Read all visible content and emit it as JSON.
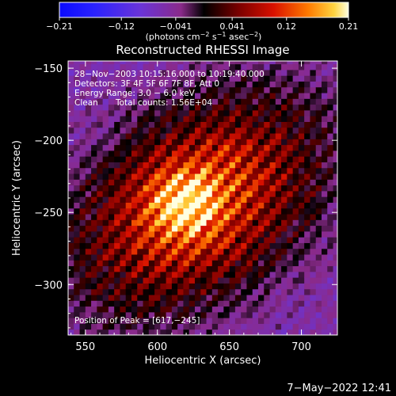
{
  "chart_data": {
    "type": "heatmap",
    "title": "Reconstructed RHESSI Image",
    "xlabel": "Heliocentric X (arcsec)",
    "ylabel": "Heliocentric Y (arcsec)",
    "xlim": [
      538,
      725
    ],
    "ylim": [
      -335,
      -145
    ],
    "x_ticks": [
      550,
      600,
      650,
      700
    ],
    "y_ticks": [
      -150,
      -200,
      -250,
      -300
    ],
    "x_tick_labels": [
      "550",
      "600",
      "650",
      "700"
    ],
    "y_tick_labels": [
      "−150",
      "−200",
      "−250",
      "−300"
    ],
    "colorbar": {
      "min": -0.21,
      "max": 0.21,
      "tick_values": [
        -0.21,
        -0.12,
        -0.041,
        0.041,
        0.12,
        0.21
      ],
      "tick_labels": [
        "−0.21",
        "−0.12",
        "−0.041",
        "0.041",
        "0.12",
        "0.21"
      ],
      "units_label": "(photons cm",
      "units_exp1": "−2",
      "units_mid1": " s",
      "units_exp2": "−1",
      "units_mid2": " asec",
      "units_exp3": "−2",
      "units_end": ")"
    },
    "annotations": {
      "time": "28−Nov−2003 10:15:16.000 to 10:19:40.000",
      "detectors": "Detectors: 3F 4F 5F 6F 7F 8F, Att 0",
      "energy": "Energy Range: 3.0 − 6.0 keV",
      "method": "Clean",
      "counts": "Total counts: 1.56E+04",
      "peak": "Position of Peak = [617,−245]"
    },
    "peak_xy": [
      617,
      -245
    ],
    "map_model": {
      "note_visible": false,
      "source_center": [
        628,
        -243
      ],
      "source_sigma_major": 58,
      "source_sigma_minor": 38,
      "source_angle_deg": 35,
      "stripe_angle_deg": 42,
      "stripe_period": 11,
      "pixel_size": 4
    },
    "colors": {
      "background": "#000000",
      "text": "#ffffff"
    }
  },
  "footer": {
    "date": "7−May−2022 12:41"
  }
}
